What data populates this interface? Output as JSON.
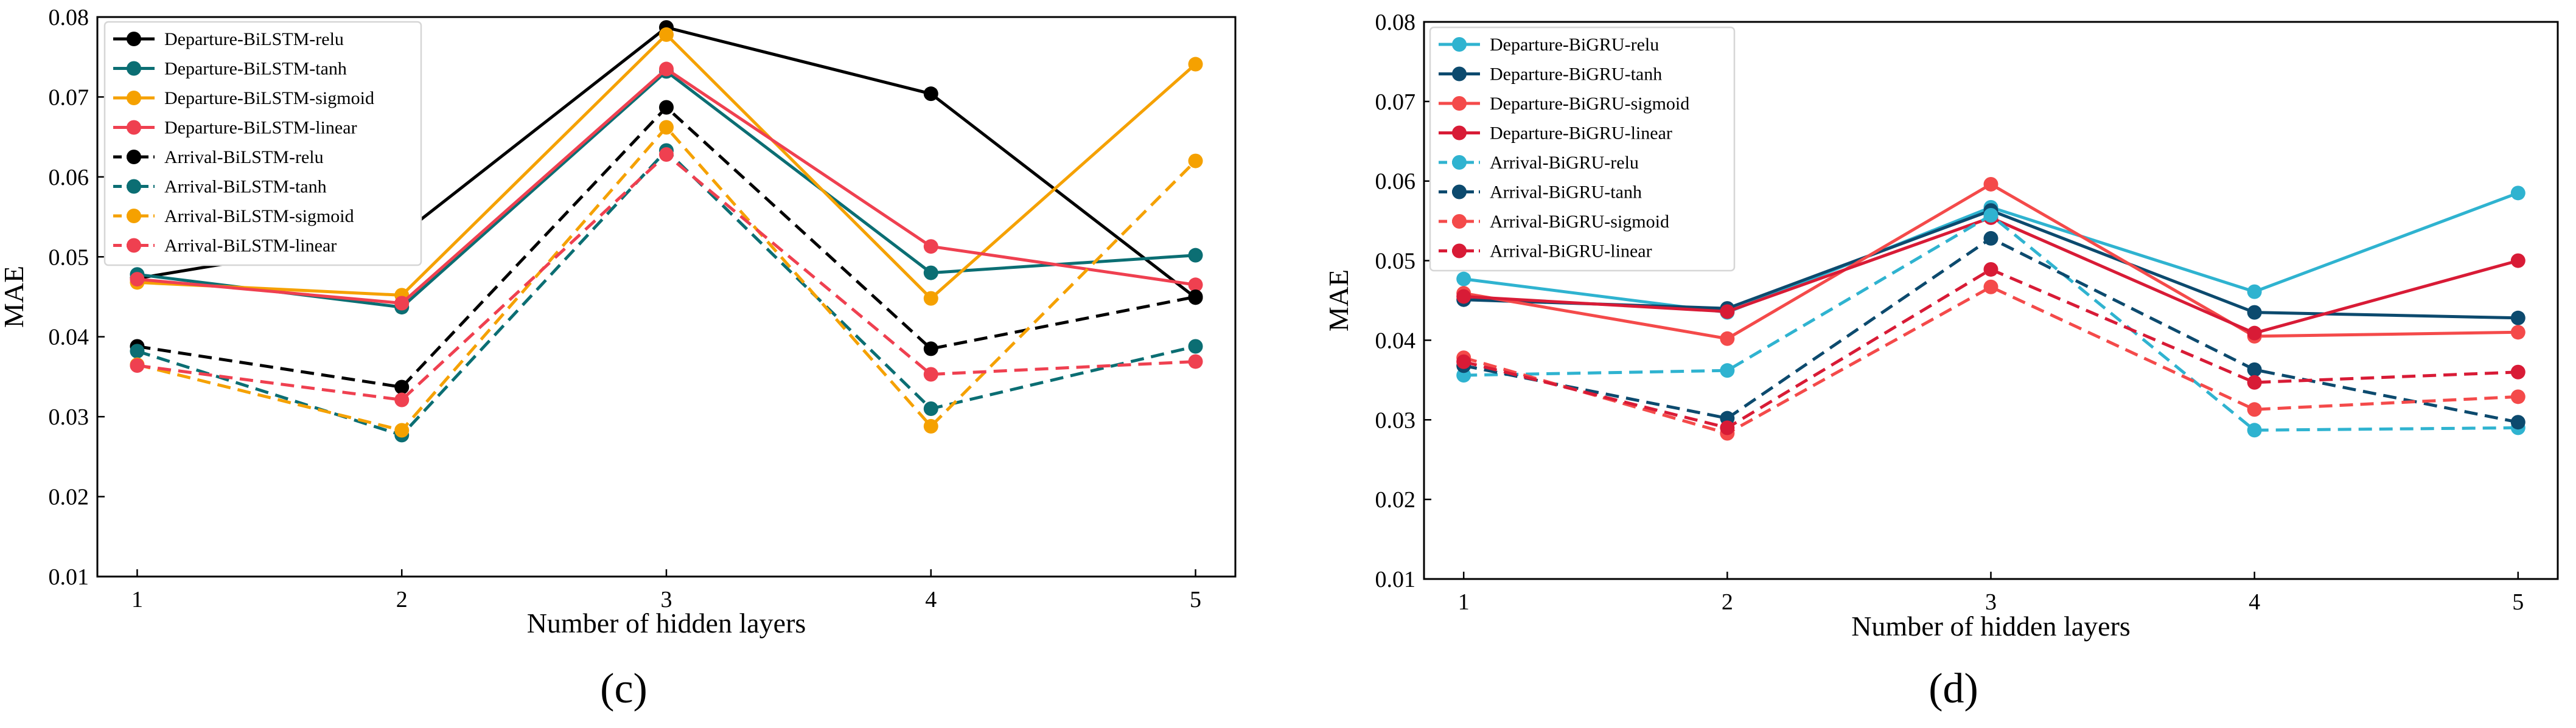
{
  "chart_data": [
    {
      "type": "line",
      "panel_label": "(c)",
      "xlabel": "Number of hidden layers",
      "ylabel": "MAE",
      "x": [
        1,
        2,
        3,
        4,
        5
      ],
      "x_tick_labels": [
        "1",
        "2",
        "3",
        "4",
        "5"
      ],
      "ylim": [
        0.01,
        0.08
      ],
      "y_ticks": [
        0.01,
        0.02,
        0.03,
        0.04,
        0.05,
        0.06,
        0.07,
        0.08
      ],
      "y_tick_labels": [
        "0.01",
        "0.02",
        "0.03",
        "0.04",
        "0.05",
        "0.06",
        "0.07",
        "0.08"
      ],
      "legend_position": "top-left",
      "series": [
        {
          "name": "Departure-BiLSTM-relu",
          "color": "#000000",
          "style": "solid",
          "values": [
            0.0473,
            0.0528,
            0.0787,
            0.0704,
            0.0449
          ]
        },
        {
          "name": "Departure-BiLSTM-tanh",
          "color": "#0b6e73",
          "style": "solid",
          "values": [
            0.0478,
            0.0437,
            0.0732,
            0.048,
            0.0502
          ]
        },
        {
          "name": "Departure-BiLSTM-sigmoid",
          "color": "#f5a100",
          "style": "solid",
          "values": [
            0.0468,
            0.0452,
            0.0778,
            0.0448,
            0.0741
          ]
        },
        {
          "name": "Departure-BiLSTM-linear",
          "color": "#ef4050",
          "style": "solid",
          "values": [
            0.0472,
            0.0442,
            0.0735,
            0.0513,
            0.0465
          ]
        },
        {
          "name": "Arrival-BiLSTM-relu",
          "color": "#000000",
          "style": "dashed",
          "values": [
            0.0388,
            0.0337,
            0.0687,
            0.0385,
            0.045
          ]
        },
        {
          "name": "Arrival-BiLSTM-tanh",
          "color": "#0b6e73",
          "style": "dashed",
          "values": [
            0.0382,
            0.0277,
            0.0633,
            0.031,
            0.0388
          ]
        },
        {
          "name": "Arrival-BiLSTM-sigmoid",
          "color": "#f5a100",
          "style": "dashed",
          "values": [
            0.0365,
            0.0283,
            0.0662,
            0.0288,
            0.062
          ]
        },
        {
          "name": "Arrival-BiLSTM-linear",
          "color": "#ef4050",
          "style": "dashed",
          "values": [
            0.0364,
            0.0321,
            0.0628,
            0.0353,
            0.0369
          ]
        }
      ]
    },
    {
      "type": "line",
      "panel_label": "(d)",
      "xlabel": "Number of hidden layers",
      "ylabel": "MAE",
      "x": [
        1,
        2,
        3,
        4,
        5
      ],
      "x_tick_labels": [
        "1",
        "2",
        "3",
        "4",
        "5"
      ],
      "ylim": [
        0.01,
        0.08
      ],
      "y_ticks": [
        0.01,
        0.02,
        0.03,
        0.04,
        0.05,
        0.06,
        0.07,
        0.08
      ],
      "y_tick_labels": [
        "0.01",
        "0.02",
        "0.03",
        "0.04",
        "0.05",
        "0.06",
        "0.07",
        "0.08"
      ],
      "legend_position": "top-left",
      "series": [
        {
          "name": "Departure-BiGRU-relu",
          "color": "#2fb3d0",
          "style": "solid",
          "values": [
            0.0477,
            0.0435,
            0.0567,
            0.0461,
            0.0585
          ]
        },
        {
          "name": "Departure-BiGRU-tanh",
          "color": "#0c4a6e",
          "style": "solid",
          "values": [
            0.0451,
            0.044,
            0.0563,
            0.0435,
            0.0428
          ]
        },
        {
          "name": "Departure-BiGRU-sigmoid",
          "color": "#f44a4a",
          "style": "solid",
          "values": [
            0.0459,
            0.0402,
            0.0596,
            0.0405,
            0.041
          ]
        },
        {
          "name": "Departure-BiGRU-linear",
          "color": "#d81b36",
          "style": "solid",
          "values": [
            0.0455,
            0.0436,
            0.0554,
            0.0409,
            0.05
          ]
        },
        {
          "name": "Arrival-BiGRU-relu",
          "color": "#2fb3d0",
          "style": "dashed",
          "values": [
            0.0356,
            0.0362,
            0.0557,
            0.0287,
            0.029
          ]
        },
        {
          "name": "Arrival-BiGRU-tanh",
          "color": "#0c4a6e",
          "style": "dashed",
          "values": [
            0.0368,
            0.0302,
            0.0528,
            0.0363,
            0.0297
          ]
        },
        {
          "name": "Arrival-BiGRU-sigmoid",
          "color": "#f44a4a",
          "style": "dashed",
          "values": [
            0.0378,
            0.0283,
            0.0467,
            0.0313,
            0.0329
          ]
        },
        {
          "name": "Arrival-BiGRU-linear",
          "color": "#d81b36",
          "style": "dashed",
          "values": [
            0.0373,
            0.029,
            0.0489,
            0.0347,
            0.036
          ]
        }
      ]
    }
  ]
}
